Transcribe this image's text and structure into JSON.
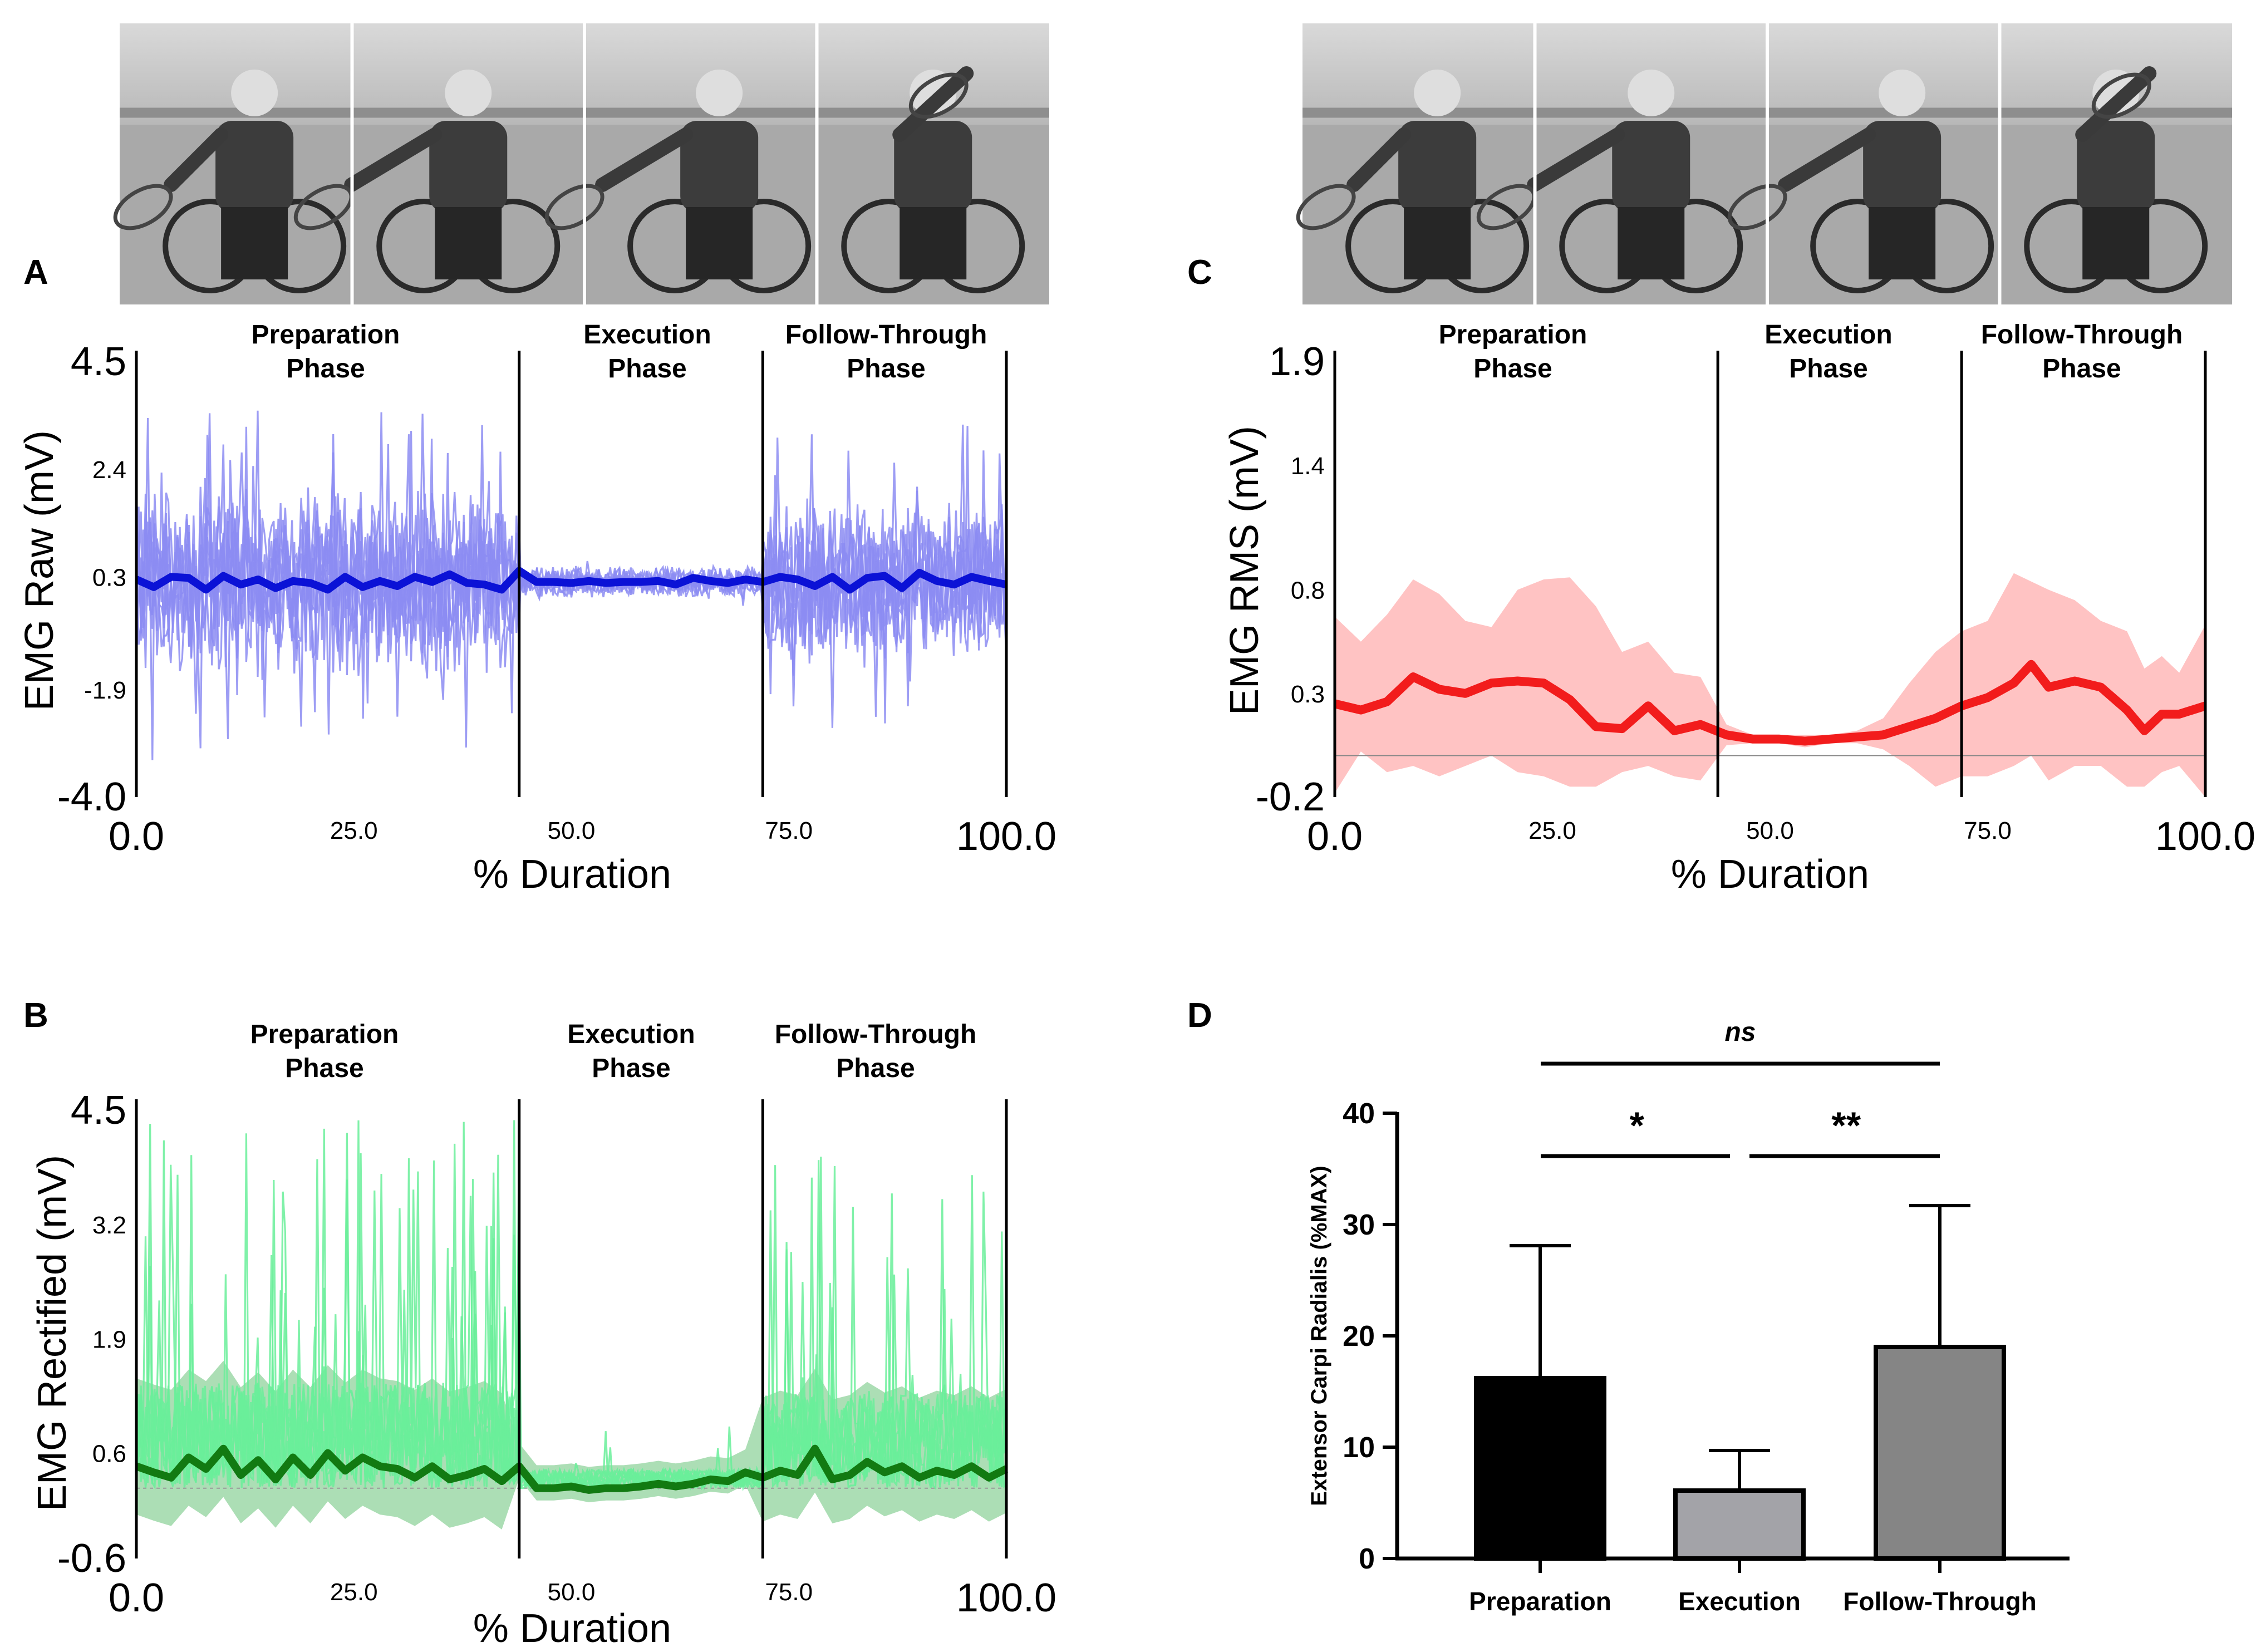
{
  "panels": {
    "A": {
      "letter": "A"
    },
    "B": {
      "letter": "B"
    },
    "C": {
      "letter": "C"
    },
    "D": {
      "letter": "D"
    }
  },
  "photo_strip": {
    "description_icon": "wheelchair-tennis-player-icon",
    "frames_per_strip": 4
  },
  "phases": {
    "preparation": [
      "Preparation",
      "Phase"
    ],
    "execution": [
      "Execution",
      "Phase"
    ],
    "follow_through": [
      "Follow-Through",
      "Phase"
    ]
  },
  "colors": {
    "raw_trials": "#8c8cf2",
    "raw_mean": "#0b12d6",
    "rect_trials": "#6aee9a",
    "rect_band": "#9ed8a8",
    "rect_mean": "#127a12",
    "rms_band": "#ffc3c3",
    "rms_mean": "#f21c1c",
    "bar_prep": "#000000",
    "bar_exec": "#a3a3a8",
    "bar_follow": "#858585"
  },
  "chart_data": [
    {
      "id": "A",
      "type": "line",
      "title": "",
      "xlabel": "% Duration",
      "ylabel": "EMG Raw (mV)",
      "xlim": [
        0,
        100
      ],
      "ylim": [
        -4.0,
        4.5
      ],
      "yticks": [
        "4.5",
        "2.4",
        "0.3",
        "-1.9",
        "-4.0"
      ],
      "ytick_values": [
        4.5,
        2.4,
        0.3,
        -1.9,
        -4.0
      ],
      "xticks": [
        "0.0",
        "25.0",
        "50.0",
        "75.0",
        "100.0"
      ],
      "xtick_values": [
        0,
        25,
        50,
        75,
        100
      ],
      "phase_boundaries": [
        44,
        72
      ],
      "series": [
        {
          "name": "Mean",
          "x": [
            0,
            2,
            4,
            6,
            8,
            10,
            12,
            14,
            16,
            18,
            20,
            22,
            24,
            26,
            28,
            30,
            32,
            34,
            36,
            38,
            40,
            42,
            44,
            46,
            48,
            50,
            52,
            54,
            56,
            58,
            60,
            62,
            64,
            66,
            68,
            70,
            72,
            74,
            76,
            78,
            80,
            82,
            84,
            86,
            88,
            90,
            92,
            94,
            96,
            98,
            100
          ],
          "values": [
            0.25,
            0.1,
            0.3,
            0.28,
            0.05,
            0.32,
            0.15,
            0.25,
            0.08,
            0.22,
            0.18,
            0.05,
            0.3,
            0.1,
            0.22,
            0.12,
            0.3,
            0.2,
            0.35,
            0.18,
            0.15,
            0.05,
            0.42,
            0.2,
            0.2,
            0.18,
            0.22,
            0.18,
            0.2,
            0.2,
            0.22,
            0.15,
            0.28,
            0.22,
            0.18,
            0.25,
            0.2,
            0.3,
            0.25,
            0.12,
            0.3,
            0.05,
            0.28,
            0.32,
            0.08,
            0.38,
            0.22,
            0.15,
            0.3,
            0.22,
            0.15
          ]
        }
      ],
      "trials": "individual raw EMG trials overlaid (8 trials), large amplitude in preparation and follow-through phases, small amplitude in execution phase"
    },
    {
      "id": "B",
      "type": "line",
      "title": "",
      "xlabel": "% Duration",
      "ylabel": "EMG Rectified (mV)",
      "xlim": [
        0,
        100
      ],
      "ylim": [
        -0.6,
        4.5
      ],
      "yticks": [
        "4.5",
        "3.2",
        "1.9",
        "0.6",
        "-0.6"
      ],
      "ytick_values": [
        4.5,
        3.2,
        1.9,
        0.6,
        -0.6
      ],
      "xticks": [
        "0.0",
        "25.0",
        "50.0",
        "75.0",
        "100.0"
      ],
      "xtick_values": [
        0,
        25,
        50,
        75,
        100
      ],
      "phase_boundaries": [
        44,
        72
      ],
      "series": [
        {
          "name": "Mean",
          "x": [
            0,
            2,
            4,
            6,
            8,
            10,
            12,
            14,
            16,
            18,
            20,
            22,
            24,
            26,
            28,
            30,
            32,
            34,
            36,
            38,
            40,
            42,
            44,
            46,
            48,
            50,
            52,
            54,
            56,
            58,
            60,
            62,
            64,
            66,
            68,
            70,
            72,
            74,
            76,
            78,
            80,
            82,
            84,
            86,
            88,
            90,
            92,
            94,
            96,
            98,
            100
          ],
          "values": [
            0.45,
            0.38,
            0.32,
            0.55,
            0.42,
            0.65,
            0.35,
            0.52,
            0.3,
            0.55,
            0.35,
            0.6,
            0.4,
            0.55,
            0.45,
            0.42,
            0.32,
            0.45,
            0.3,
            0.35,
            0.42,
            0.28,
            0.45,
            0.2,
            0.2,
            0.22,
            0.18,
            0.2,
            0.2,
            0.22,
            0.25,
            0.22,
            0.25,
            0.3,
            0.28,
            0.38,
            0.32,
            0.4,
            0.35,
            0.65,
            0.3,
            0.35,
            0.5,
            0.38,
            0.45,
            0.32,
            0.4,
            0.35,
            0.45,
            0.32,
            0.42
          ]
        }
      ],
      "trials": "individual rectified EMG trials overlaid with shaded standard deviation band"
    },
    {
      "id": "C",
      "type": "area",
      "title": "",
      "xlabel": "% Duration",
      "ylabel": "EMG RMS (mV)",
      "xlim": [
        0,
        100
      ],
      "ylim": [
        -0.2,
        1.9
      ],
      "yticks": [
        "1.9",
        "1.4",
        "0.8",
        "0.3",
        "-0.2"
      ],
      "ytick_values": [
        1.9,
        1.4,
        0.8,
        0.3,
        -0.2
      ],
      "xticks": [
        "0.0",
        "25.0",
        "50.0",
        "75.0",
        "100.0"
      ],
      "xtick_values": [
        0,
        25,
        50,
        75,
        100
      ],
      "phase_boundaries": [
        44,
        72
      ],
      "zero_line": 0.0,
      "series": [
        {
          "name": "Mean",
          "x": [
            0,
            3,
            6,
            9,
            12,
            15,
            18,
            21,
            24,
            27,
            30,
            33,
            36,
            39,
            42,
            45,
            48,
            51,
            54,
            57,
            60,
            63,
            66,
            69,
            72,
            75,
            78,
            80,
            82,
            85,
            88,
            91,
            93,
            95,
            97,
            100
          ],
          "values": [
            0.25,
            0.22,
            0.26,
            0.38,
            0.32,
            0.3,
            0.35,
            0.36,
            0.35,
            0.27,
            0.14,
            0.13,
            0.24,
            0.12,
            0.15,
            0.1,
            0.08,
            0.08,
            0.07,
            0.08,
            0.09,
            0.1,
            0.14,
            0.18,
            0.24,
            0.28,
            0.35,
            0.44,
            0.33,
            0.36,
            0.33,
            0.22,
            0.12,
            0.2,
            0.2,
            0.24
          ]
        },
        {
          "name": "Upper",
          "x": [
            0,
            3,
            6,
            9,
            12,
            15,
            18,
            21,
            24,
            27,
            30,
            33,
            36,
            39,
            42,
            45,
            48,
            51,
            54,
            57,
            60,
            63,
            66,
            69,
            72,
            75,
            78,
            80,
            82,
            85,
            88,
            91,
            93,
            95,
            97,
            100
          ],
          "values": [
            0.67,
            0.55,
            0.68,
            0.85,
            0.78,
            0.65,
            0.62,
            0.8,
            0.85,
            0.86,
            0.72,
            0.5,
            0.55,
            0.4,
            0.38,
            0.15,
            0.1,
            0.1,
            0.1,
            0.1,
            0.12,
            0.18,
            0.35,
            0.5,
            0.6,
            0.65,
            0.88,
            0.84,
            0.8,
            0.75,
            0.65,
            0.6,
            0.42,
            0.48,
            0.4,
            0.63
          ]
        },
        {
          "name": "Lower",
          "x": [
            0,
            3,
            6,
            9,
            12,
            15,
            18,
            21,
            24,
            27,
            30,
            33,
            36,
            39,
            42,
            45,
            48,
            51,
            54,
            57,
            60,
            63,
            66,
            69,
            72,
            75,
            78,
            80,
            82,
            85,
            88,
            91,
            93,
            95,
            97,
            100
          ],
          "values": [
            -0.18,
            0.02,
            -0.08,
            -0.05,
            -0.1,
            -0.05,
            0.0,
            -0.08,
            -0.1,
            -0.15,
            -0.15,
            -0.08,
            -0.05,
            -0.1,
            -0.12,
            0.05,
            0.06,
            0.06,
            0.04,
            0.06,
            0.06,
            0.03,
            -0.05,
            -0.15,
            -0.1,
            -0.1,
            -0.05,
            0.0,
            -0.12,
            -0.05,
            -0.05,
            -0.15,
            -0.15,
            -0.08,
            -0.05,
            -0.2
          ]
        }
      ]
    },
    {
      "id": "D",
      "type": "bar",
      "title": "",
      "xlabel": "",
      "ylabel": "Extensor Carpi Radialis (%MAX)",
      "ylim": [
        0,
        40
      ],
      "yticks": [
        "40",
        "30",
        "20",
        "10",
        "0"
      ],
      "ytick_values": [
        40,
        30,
        20,
        10,
        0
      ],
      "categories": [
        "Preparation",
        "Execution",
        "Follow-Through"
      ],
      "values": [
        16.2,
        6.1,
        19.0
      ],
      "error_upper": [
        28.1,
        9.7,
        31.7
      ],
      "significance": [
        {
          "from": "Preparation",
          "to": "Execution",
          "label": "*"
        },
        {
          "from": "Execution",
          "to": "Follow-Through",
          "label": "**"
        },
        {
          "from": "Preparation",
          "to": "Follow-Through",
          "label": "ns"
        }
      ]
    }
  ]
}
